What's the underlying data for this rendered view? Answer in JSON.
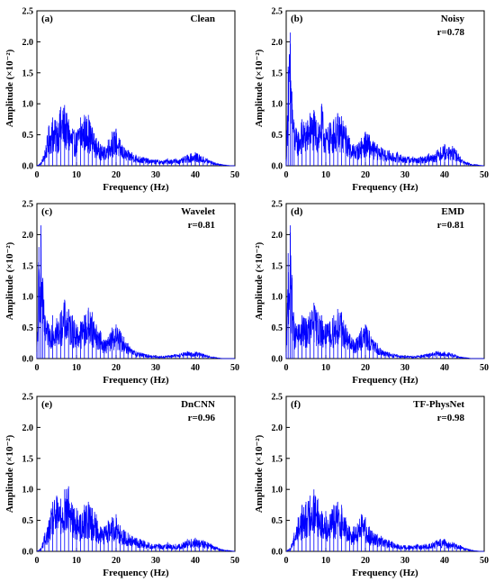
{
  "chart_data": [
    {
      "type": "line",
      "panel_label": "(a)",
      "method": "Clean",
      "correlation": "",
      "xlabel": "Frequency (Hz)",
      "ylabel": "Amplitude (×10⁻²)",
      "xlim": [
        0,
        50
      ],
      "ylim": [
        0,
        2.5
      ],
      "xticks": [
        "0",
        "10",
        "20",
        "30",
        "40",
        "50"
      ],
      "yticks": [
        "0.0",
        "0.5",
        "1.0",
        "1.5",
        "2.0",
        "2.5"
      ],
      "series": [
        {
          "color": "#0000ff",
          "x": [
            0,
            1,
            2,
            3,
            4,
            5,
            6,
            7,
            8,
            9,
            10,
            11,
            12,
            13,
            14,
            15,
            16,
            17,
            18,
            19,
            20,
            21,
            22,
            23,
            24,
            25,
            26,
            27,
            28,
            29,
            30,
            31,
            32,
            33,
            34,
            35,
            36,
            37,
            38,
            39,
            40,
            41,
            42,
            43,
            44,
            45,
            46,
            47,
            48,
            49,
            50
          ],
          "y": [
            0.0,
            0.05,
            0.25,
            0.65,
            0.78,
            0.72,
            0.95,
            0.98,
            0.75,
            0.6,
            0.55,
            0.78,
            0.82,
            0.82,
            0.62,
            0.45,
            0.35,
            0.3,
            0.42,
            0.55,
            0.6,
            0.42,
            0.3,
            0.25,
            0.22,
            0.18,
            0.15,
            0.14,
            0.12,
            0.1,
            0.1,
            0.09,
            0.08,
            0.12,
            0.1,
            0.12,
            0.1,
            0.14,
            0.18,
            0.2,
            0.22,
            0.18,
            0.15,
            0.12,
            0.08,
            0.05,
            0.03,
            0.02,
            0.01,
            0.0,
            0.0
          ]
        }
      ]
    },
    {
      "type": "line",
      "panel_label": "(b)",
      "method": "Noisy",
      "correlation": "r=0.78",
      "xlabel": "Frequency (Hz)",
      "ylabel": "Amplitude (×10⁻²)",
      "xlim": [
        0,
        50
      ],
      "ylim": [
        0,
        2.5
      ],
      "xticks": [
        "0",
        "10",
        "20",
        "30",
        "40",
        "50"
      ],
      "yticks": [
        "0.0",
        "0.5",
        "1.0",
        "1.5",
        "2.0",
        "2.5"
      ],
      "series": [
        {
          "color": "#0000ff",
          "x": [
            0,
            0.5,
            1,
            1.5,
            2,
            3,
            4,
            5,
            6,
            7,
            8,
            9,
            10,
            11,
            12,
            13,
            14,
            15,
            16,
            17,
            18,
            19,
            20,
            21,
            22,
            23,
            24,
            25,
            26,
            27,
            28,
            29,
            30,
            31,
            32,
            33,
            34,
            35,
            36,
            37,
            38,
            39,
            40,
            41,
            42,
            43,
            44,
            45,
            46,
            47,
            48,
            49,
            50
          ],
          "y": [
            0.1,
            1.6,
            2.15,
            1.2,
            0.7,
            0.55,
            0.75,
            0.7,
            0.85,
            0.9,
            0.7,
            1.0,
            0.6,
            0.7,
            0.75,
            0.85,
            0.8,
            0.65,
            0.45,
            0.35,
            0.35,
            0.45,
            0.55,
            0.5,
            0.4,
            0.35,
            0.3,
            0.25,
            0.25,
            0.2,
            0.22,
            0.18,
            0.15,
            0.15,
            0.15,
            0.12,
            0.15,
            0.15,
            0.2,
            0.18,
            0.25,
            0.3,
            0.35,
            0.3,
            0.32,
            0.25,
            0.15,
            0.08,
            0.05,
            0.02,
            0.02,
            0.01,
            0.0
          ]
        }
      ]
    },
    {
      "type": "line",
      "panel_label": "(c)",
      "method": "Wavelet",
      "correlation": "r=0.81",
      "xlabel": "Frequency (Hz)",
      "ylabel": "Amplitude (×10⁻²)",
      "xlim": [
        0,
        50
      ],
      "ylim": [
        0,
        2.5
      ],
      "xticks": [
        "0",
        "10",
        "20",
        "30",
        "40",
        "50"
      ],
      "yticks": [
        "0.0",
        "0.5",
        "1.0",
        "1.5",
        "2.0",
        "2.5"
      ],
      "series": [
        {
          "color": "#0000ff",
          "x": [
            0,
            0.5,
            1,
            1.5,
            2,
            3,
            4,
            5,
            6,
            7,
            8,
            9,
            10,
            11,
            12,
            13,
            14,
            15,
            16,
            17,
            18,
            19,
            20,
            21,
            22,
            23,
            24,
            25,
            26,
            27,
            28,
            29,
            30,
            31,
            32,
            33,
            34,
            35,
            36,
            37,
            38,
            39,
            40,
            41,
            42,
            43,
            44,
            45,
            46,
            47,
            48,
            49,
            50
          ],
          "y": [
            0.1,
            1.8,
            2.15,
            1.3,
            0.7,
            0.55,
            0.7,
            0.65,
            0.75,
            0.95,
            0.8,
            0.7,
            0.55,
            0.6,
            0.7,
            0.82,
            0.75,
            0.55,
            0.45,
            0.3,
            0.35,
            0.5,
            0.55,
            0.45,
            0.35,
            0.25,
            0.15,
            0.12,
            0.1,
            0.08,
            0.07,
            0.05,
            0.05,
            0.04,
            0.04,
            0.05,
            0.06,
            0.07,
            0.08,
            0.1,
            0.12,
            0.1,
            0.11,
            0.1,
            0.08,
            0.05,
            0.03,
            0.02,
            0.01,
            0.0,
            0.0,
            0.0,
            0.0
          ]
        }
      ]
    },
    {
      "type": "line",
      "panel_label": "(d)",
      "method": "EMD",
      "correlation": "r=0.81",
      "xlabel": "Frequency (Hz)",
      "ylabel": "Amplitude (×10⁻²)",
      "xlim": [
        0,
        50
      ],
      "ylim": [
        0,
        2.5
      ],
      "xticks": [
        "0",
        "10",
        "20",
        "30",
        "40",
        "50"
      ],
      "yticks": [
        "0.0",
        "0.5",
        "1.0",
        "1.5",
        "2.0",
        "2.5"
      ],
      "series": [
        {
          "color": "#0000ff",
          "x": [
            0,
            0.5,
            1,
            1.5,
            2,
            3,
            4,
            5,
            6,
            7,
            8,
            9,
            10,
            11,
            12,
            13,
            14,
            15,
            16,
            17,
            18,
            19,
            20,
            21,
            22,
            23,
            24,
            25,
            26,
            27,
            28,
            29,
            30,
            31,
            32,
            33,
            34,
            35,
            36,
            37,
            38,
            39,
            40,
            41,
            42,
            43,
            44,
            45,
            46,
            47,
            48,
            49,
            50
          ],
          "y": [
            0.1,
            1.7,
            2.15,
            1.3,
            0.6,
            0.55,
            0.7,
            0.65,
            0.75,
            0.9,
            0.75,
            0.7,
            0.55,
            0.6,
            0.7,
            0.8,
            0.75,
            0.55,
            0.4,
            0.3,
            0.35,
            0.5,
            0.55,
            0.45,
            0.3,
            0.25,
            0.15,
            0.12,
            0.1,
            0.08,
            0.07,
            0.05,
            0.05,
            0.04,
            0.04,
            0.05,
            0.06,
            0.07,
            0.08,
            0.1,
            0.12,
            0.1,
            0.11,
            0.1,
            0.08,
            0.05,
            0.03,
            0.02,
            0.01,
            0.0,
            0.0,
            0.0,
            0.0
          ]
        }
      ]
    },
    {
      "type": "line",
      "panel_label": "(e)",
      "method": "DnCNN",
      "correlation": "r=0.96",
      "xlabel": "Frequency (Hz)",
      "ylabel": "Amplitude (×10⁻²)",
      "xlim": [
        0,
        50
      ],
      "ylim": [
        0,
        2.5
      ],
      "xticks": [
        "0",
        "10",
        "20",
        "30",
        "40",
        "50"
      ],
      "yticks": [
        "0.0",
        "0.5",
        "1.0",
        "1.5",
        "2.0",
        "2.5"
      ],
      "series": [
        {
          "color": "#0000ff",
          "x": [
            0,
            1,
            2,
            3,
            4,
            5,
            6,
            7,
            8,
            9,
            10,
            11,
            12,
            13,
            14,
            15,
            16,
            17,
            18,
            19,
            20,
            21,
            22,
            23,
            24,
            25,
            26,
            27,
            28,
            29,
            30,
            31,
            32,
            33,
            34,
            35,
            36,
            37,
            38,
            39,
            40,
            41,
            42,
            43,
            44,
            45,
            46,
            47,
            48,
            49,
            50
          ],
          "y": [
            0.0,
            0.05,
            0.3,
            0.5,
            0.8,
            0.9,
            0.85,
            1.0,
            1.05,
            0.75,
            0.7,
            0.6,
            0.75,
            0.8,
            0.7,
            0.6,
            0.4,
            0.4,
            0.5,
            0.55,
            0.6,
            0.42,
            0.35,
            0.3,
            0.25,
            0.22,
            0.2,
            0.18,
            0.15,
            0.12,
            0.12,
            0.12,
            0.1,
            0.15,
            0.1,
            0.12,
            0.12,
            0.15,
            0.2,
            0.2,
            0.22,
            0.18,
            0.18,
            0.15,
            0.12,
            0.08,
            0.05,
            0.03,
            0.02,
            0.01,
            0.0
          ]
        }
      ]
    },
    {
      "type": "line",
      "panel_label": "(f)",
      "method": "TF-PhysNet",
      "correlation": "r=0.98",
      "xlabel": "Frequency (Hz)",
      "ylabel": "Amplitude (×10⁻²)",
      "xlim": [
        0,
        50
      ],
      "ylim": [
        0,
        2.5
      ],
      "xticks": [
        "0",
        "10",
        "20",
        "30",
        "40",
        "50"
      ],
      "yticks": [
        "0.0",
        "0.5",
        "1.0",
        "1.5",
        "2.0",
        "2.5"
      ],
      "series": [
        {
          "color": "#0000ff",
          "x": [
            0,
            1,
            2,
            3,
            4,
            5,
            6,
            7,
            8,
            9,
            10,
            11,
            12,
            13,
            14,
            15,
            16,
            17,
            18,
            19,
            20,
            21,
            22,
            23,
            24,
            25,
            26,
            27,
            28,
            29,
            30,
            31,
            32,
            33,
            34,
            35,
            36,
            37,
            38,
            39,
            40,
            41,
            42,
            43,
            44,
            45,
            46,
            47,
            48,
            49,
            50
          ],
          "y": [
            0.0,
            0.05,
            0.3,
            0.55,
            0.75,
            0.8,
            0.9,
            1.0,
            0.85,
            0.65,
            0.65,
            0.6,
            0.75,
            0.8,
            0.75,
            0.55,
            0.4,
            0.4,
            0.45,
            0.6,
            0.55,
            0.4,
            0.3,
            0.28,
            0.25,
            0.2,
            0.18,
            0.15,
            0.12,
            0.1,
            0.1,
            0.1,
            0.08,
            0.12,
            0.1,
            0.12,
            0.12,
            0.15,
            0.18,
            0.2,
            0.2,
            0.15,
            0.15,
            0.12,
            0.1,
            0.06,
            0.04,
            0.02,
            0.01,
            0.0,
            0.0
          ]
        }
      ]
    }
  ]
}
